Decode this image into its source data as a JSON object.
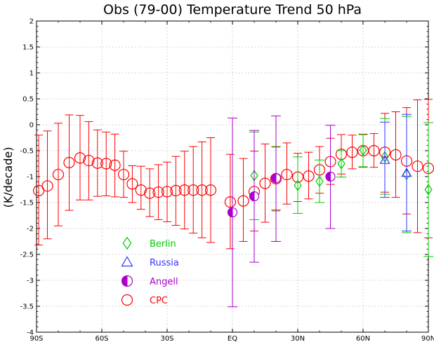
{
  "chart_data": {
    "type": "scatter",
    "title": "Obs (79-00) Temperature Trend  50 hPa",
    "ylabel": "(K/decade)",
    "xlabel": "",
    "xlim": [
      -90,
      90
    ],
    "ylim": [
      -4,
      2
    ],
    "grid": true,
    "grid_style": "dotted",
    "legend_position": "lower-left",
    "x_ticks": [
      {
        "value": -90,
        "label": "90S"
      },
      {
        "value": -60,
        "label": "60S"
      },
      {
        "value": -30,
        "label": "30S"
      },
      {
        "value": 0,
        "label": "EQ"
      },
      {
        "value": 30,
        "label": "30N"
      },
      {
        "value": 60,
        "label": "60N"
      },
      {
        "value": 90,
        "label": "90N"
      }
    ],
    "y_ticks": [
      {
        "value": -4,
        "label": "-4"
      },
      {
        "value": -3.5,
        "label": "-3.5"
      },
      {
        "value": -3,
        "label": "-3"
      },
      {
        "value": -2.5,
        "label": "-2.5"
      },
      {
        "value": -2,
        "label": "-2"
      },
      {
        "value": -1.5,
        "label": "-1.5"
      },
      {
        "value": -1,
        "label": "-1"
      },
      {
        "value": -0.5,
        "label": "-0.5"
      },
      {
        "value": 0,
        "label": "0"
      },
      {
        "value": 0.5,
        "label": "0.5"
      },
      {
        "value": 1,
        "label": "1"
      },
      {
        "value": 1.5,
        "label": "1.5"
      },
      {
        "value": 2,
        "label": "2"
      }
    ],
    "series": [
      {
        "name": "CPC",
        "marker": "circle",
        "color": "#ff0000",
        "points": [
          {
            "x": -89,
            "y": -1.27,
            "low": -2.32,
            "high": -0.2
          },
          {
            "x": -85,
            "y": -1.18,
            "low": -2.2,
            "high": -0.12
          },
          {
            "x": -80,
            "y": -0.96,
            "low": -1.95,
            "high": 0.03
          },
          {
            "x": -75,
            "y": -0.73,
            "low": -1.65,
            "high": 0.19
          },
          {
            "x": -70,
            "y": -0.64,
            "low": -1.45,
            "high": 0.18
          },
          {
            "x": -66,
            "y": -0.69,
            "low": -1.45,
            "high": 0.06
          },
          {
            "x": -62,
            "y": -0.74,
            "low": -1.38,
            "high": -0.1
          },
          {
            "x": -58,
            "y": -0.75,
            "low": -1.37,
            "high": -0.14
          },
          {
            "x": -54,
            "y": -0.78,
            "low": -1.39,
            "high": -0.18
          },
          {
            "x": -50,
            "y": -0.96,
            "low": -1.4,
            "high": -0.51
          },
          {
            "x": -46,
            "y": -1.14,
            "low": -1.5,
            "high": -0.79
          },
          {
            "x": -42,
            "y": -1.26,
            "low": -1.63,
            "high": -0.8
          },
          {
            "x": -38,
            "y": -1.32,
            "low": -1.77,
            "high": -0.85
          },
          {
            "x": -34,
            "y": -1.3,
            "low": -1.83,
            "high": -0.77
          },
          {
            "x": -30,
            "y": -1.29,
            "low": -1.87,
            "high": -0.72
          },
          {
            "x": -26,
            "y": -1.27,
            "low": -1.94,
            "high": -0.61
          },
          {
            "x": -22,
            "y": -1.26,
            "low": -2.01,
            "high": -0.51
          },
          {
            "x": -18,
            "y": -1.26,
            "low": -2.09,
            "high": -0.42
          },
          {
            "x": -14,
            "y": -1.26,
            "low": -2.18,
            "high": -0.33
          },
          {
            "x": -10,
            "y": -1.26,
            "low": -2.27,
            "high": -0.25
          },
          {
            "x": -1,
            "y": -1.49,
            "low": -2.39,
            "high": -0.57
          },
          {
            "x": 5,
            "y": -1.47,
            "low": -2.25,
            "high": -0.65
          },
          {
            "x": 10,
            "y": -1.29,
            "low": -2.05,
            "high": -0.51
          },
          {
            "x": 15,
            "y": -1.13,
            "low": -1.88,
            "high": -0.37
          },
          {
            "x": 20,
            "y": -1.04,
            "low": -1.66,
            "high": -0.43
          },
          {
            "x": 25,
            "y": -0.96,
            "low": -1.53,
            "high": -0.35
          },
          {
            "x": 30,
            "y": -1.01,
            "low": -1.48,
            "high": -0.55
          },
          {
            "x": 35,
            "y": -0.99,
            "low": -1.43,
            "high": -0.53
          },
          {
            "x": 40,
            "y": -0.87,
            "low": -1.32,
            "high": -0.42
          },
          {
            "x": 45,
            "y": -0.71,
            "low": -1.15,
            "high": -0.26
          },
          {
            "x": 50,
            "y": -0.57,
            "low": -0.95,
            "high": -0.19
          },
          {
            "x": 55,
            "y": -0.53,
            "low": -0.85,
            "high": -0.2
          },
          {
            "x": 60,
            "y": -0.5,
            "low": -0.82,
            "high": -0.19
          },
          {
            "x": 65,
            "y": -0.5,
            "low": -0.82,
            "high": -0.17
          },
          {
            "x": 70,
            "y": -0.53,
            "low": -1.3,
            "high": 0.22
          },
          {
            "x": 75,
            "y": -0.58,
            "low": -1.4,
            "high": 0.25
          },
          {
            "x": 80,
            "y": -0.7,
            "low": -1.72,
            "high": 0.33
          },
          {
            "x": 85,
            "y": -0.8,
            "low": -2.08,
            "high": 0.48
          },
          {
            "x": 90,
            "y": -0.84,
            "low": -2.18,
            "high": 0.49
          }
        ]
      },
      {
        "name": "Berlin",
        "marker": "diamond",
        "color": "#00cc00",
        "points": [
          {
            "x": 10,
            "y": -0.98,
            "low": -1.83,
            "high": -0.14
          },
          {
            "x": 20,
            "y": -1.03,
            "low": -1.64,
            "high": -0.42
          },
          {
            "x": 30,
            "y": -1.17,
            "low": -1.71,
            "high": -0.62
          },
          {
            "x": 40,
            "y": -1.09,
            "low": -1.5,
            "high": -0.68
          },
          {
            "x": 50,
            "y": -0.75,
            "low": -1.01,
            "high": -0.5
          },
          {
            "x": 60,
            "y": -0.49,
            "low": -0.81,
            "high": -0.18
          },
          {
            "x": 70,
            "y": -0.62,
            "low": -1.34,
            "high": 0.12
          },
          {
            "x": 80,
            "y": -0.96,
            "low": -2.08,
            "high": 0.16
          },
          {
            "x": 90,
            "y": -1.25,
            "low": -2.54,
            "high": 0.04
          }
        ]
      },
      {
        "name": "Russia",
        "marker": "triangle",
        "color": "#3333ff",
        "points": [
          {
            "x": 70,
            "y": -0.68,
            "low": -1.4,
            "high": 0.05
          },
          {
            "x": 80,
            "y": -0.93,
            "low": -2.05,
            "high": 0.2
          }
        ]
      },
      {
        "name": "Angell",
        "marker": "half-filled-circle",
        "color": "#aa00cc",
        "points": [
          {
            "x": 0,
            "y": -1.69,
            "low": -3.51,
            "high": 0.13
          },
          {
            "x": 10,
            "y": -1.38,
            "low": -2.65,
            "high": -0.11
          },
          {
            "x": 20,
            "y": -1.03,
            "low": -2.25,
            "high": 0.17
          },
          {
            "x": 45,
            "y": -1.0,
            "low": -2.0,
            "high": -0.01
          }
        ]
      }
    ],
    "legend": [
      {
        "name": "Berlin",
        "color": "#00cc00",
        "marker": "diamond"
      },
      {
        "name": "Russia",
        "color": "#3333ff",
        "marker": "triangle"
      },
      {
        "name": "Angell",
        "color": "#aa00cc",
        "marker": "half-filled-circle"
      },
      {
        "name": "CPC",
        "color": "#ff0000",
        "marker": "circle"
      }
    ]
  }
}
